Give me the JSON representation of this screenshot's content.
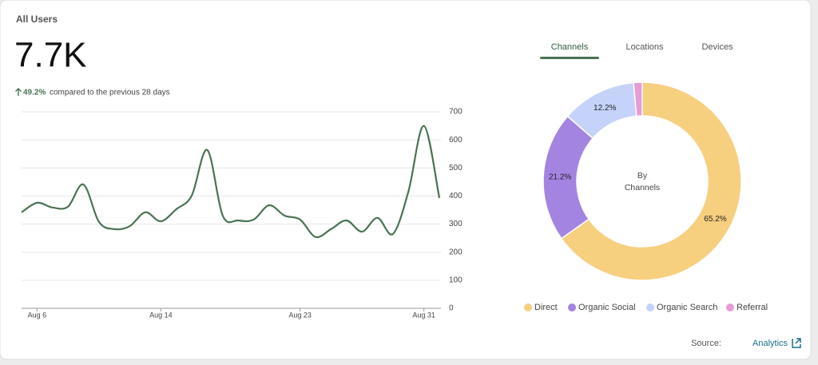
{
  "card": {
    "title": "All Users",
    "value": "7.7K",
    "change": "49.2%",
    "comparison": "compared to the previous 28 days",
    "tabs": [
      "Channels",
      "Locations",
      "Devices"
    ],
    "active_tab": "Channels",
    "source_label": "Source:",
    "source_link": "Analytics"
  },
  "chart_data": [
    {
      "type": "line",
      "categories": [
        null,
        "Aug 6",
        null,
        null,
        null,
        null,
        null,
        null,
        null,
        "Aug 14",
        null,
        null,
        null,
        null,
        null,
        null,
        null,
        null,
        "Aug 23",
        null,
        null,
        null,
        null,
        null,
        null,
        null,
        "Aug 31",
        null
      ],
      "series": [
        {
          "name": "All Users",
          "color": "#4a7353",
          "values": [
            342,
            376,
            359,
            362,
            441,
            308,
            282,
            293,
            342,
            310,
            353,
            402,
            564,
            330,
            313,
            316,
            367,
            330,
            316,
            254,
            282,
            313,
            273,
            322,
            265,
            416,
            650,
            393
          ]
        }
      ],
      "ylim": [
        0,
        700
      ],
      "yticks": [
        0,
        100,
        200,
        300,
        400,
        500,
        600,
        700
      ],
      "grid": true
    },
    {
      "type": "donut",
      "center_label": [
        "By",
        "Channels"
      ],
      "categories": [
        "Direct",
        "Organic Social",
        "Organic Search",
        "Referral"
      ],
      "values": [
        65.2,
        21.2,
        12.2,
        1.4
      ],
      "value_labels": [
        "65.2%",
        "21.2%",
        "12.2%",
        null
      ],
      "colors": [
        "#f6cf7f",
        "#a484e1",
        "#c5d3fa",
        "#e99bd6"
      ],
      "legend": "bottom"
    }
  ]
}
